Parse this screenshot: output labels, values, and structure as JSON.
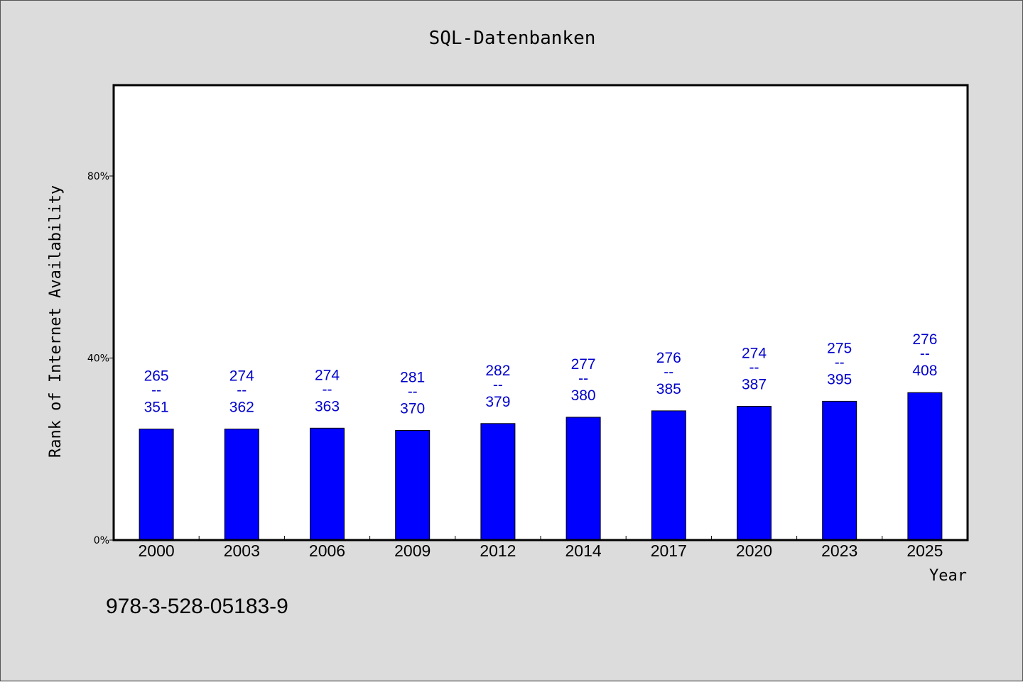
{
  "chart_data": {
    "type": "bar",
    "title": "SQL-Datenbanken",
    "xlabel": "Year",
    "ylabel": "Rank of Internet Availability",
    "categories": [
      "2000",
      "2003",
      "2006",
      "2009",
      "2012",
      "2014",
      "2017",
      "2020",
      "2023",
      "2025"
    ],
    "values": [
      24.4,
      24.4,
      24.6,
      24.1,
      25.6,
      27.0,
      28.4,
      29.4,
      30.5,
      32.4
    ],
    "value_unit": "%",
    "ylim": [
      0,
      100
    ],
    "yticks": [
      {
        "value": 0,
        "label": "0%"
      },
      {
        "value": 40,
        "label": "40%"
      },
      {
        "value": 80,
        "label": "80%"
      }
    ],
    "data_labels": [
      {
        "top": "265",
        "sep": "--",
        "bottom": "351"
      },
      {
        "top": "274",
        "sep": "--",
        "bottom": "362"
      },
      {
        "top": "274",
        "sep": "--",
        "bottom": "363"
      },
      {
        "top": "281",
        "sep": "--",
        "bottom": "370"
      },
      {
        "top": "282",
        "sep": "--",
        "bottom": "379"
      },
      {
        "top": "277",
        "sep": "--",
        "bottom": "380"
      },
      {
        "top": "276",
        "sep": "--",
        "bottom": "385"
      },
      {
        "top": "274",
        "sep": "--",
        "bottom": "387"
      },
      {
        "top": "275",
        "sep": "--",
        "bottom": "395"
      },
      {
        "top": "276",
        "sep": "--",
        "bottom": "408"
      }
    ],
    "grid": false,
    "legend": "none",
    "bar_color": "#0000ff",
    "label_color": "#0000cc"
  },
  "footnote": "978-3-528-05183-9",
  "colors": {
    "background": "#dcdcdc",
    "plot_background": "#ffffff"
  }
}
